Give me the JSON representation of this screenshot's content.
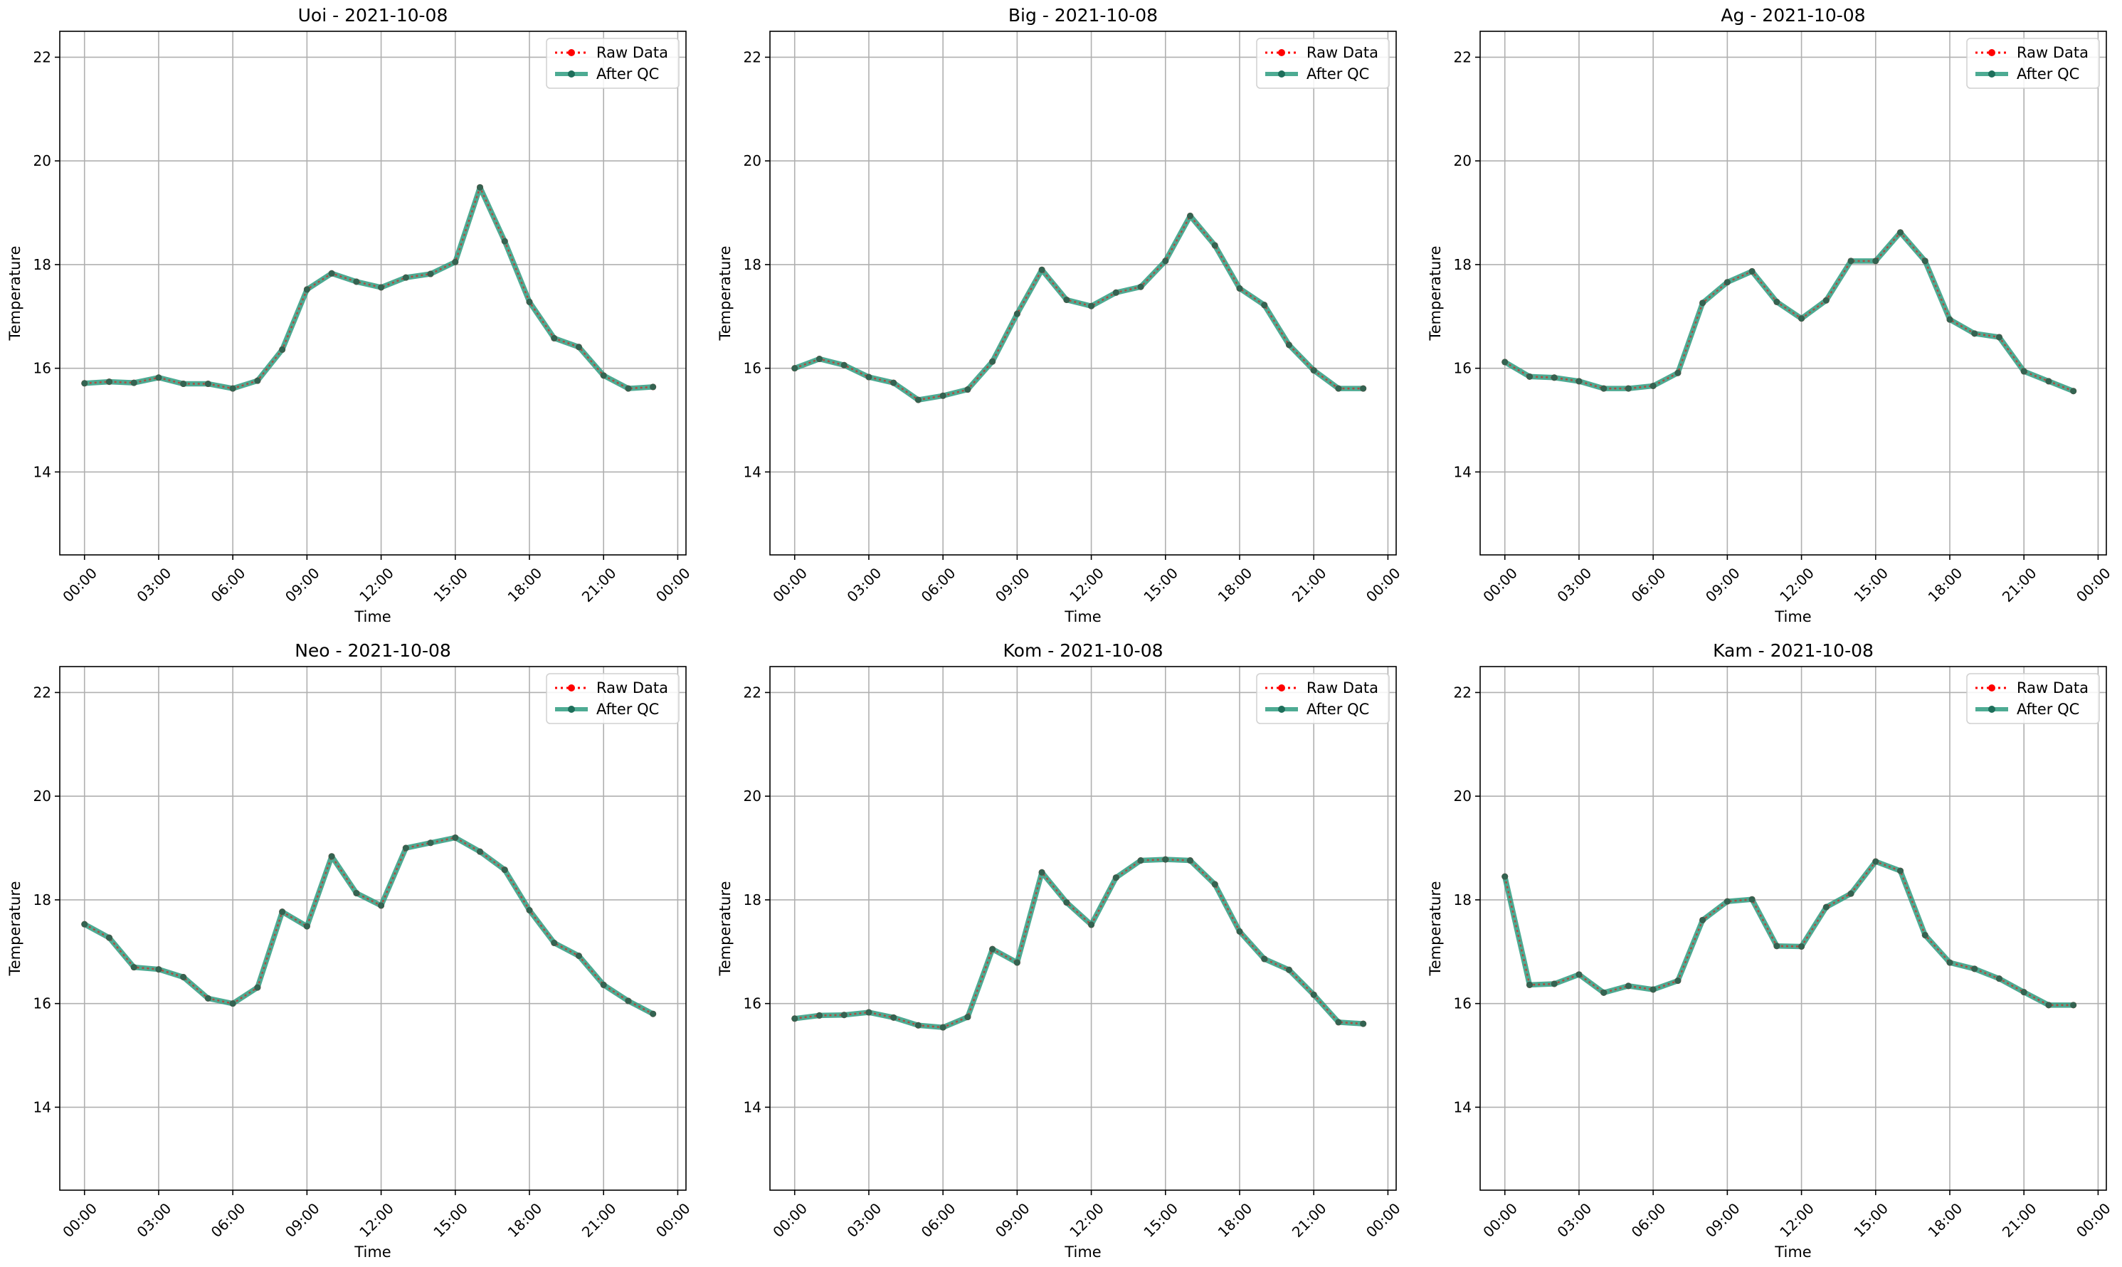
{
  "colors": {
    "raw": "#ff0000",
    "qc": "#2e9c80",
    "qc_marker": "#1e6e5a",
    "grid": "#b0b0b0",
    "axes": "#000000"
  },
  "legend": {
    "placement": "top-right",
    "raw_label": "Raw Data",
    "qc_label": "After QC"
  },
  "chart_data": [
    {
      "type": "line",
      "title": "Uoi - 2021-10-08",
      "xlabel": "Time",
      "ylabel": "Temperature",
      "grid": true,
      "ylim": [
        12.4,
        22.5
      ],
      "xlim": [
        "2021-10-07 23:00",
        "2021-10-09 00:20"
      ],
      "yticks": [
        "14",
        "16",
        "18",
        "20",
        "22"
      ],
      "xticks": [
        "00:00",
        "03:00",
        "06:00",
        "09:00",
        "12:00",
        "15:00",
        "18:00",
        "21:00",
        "00:00"
      ],
      "x": [
        "00:00",
        "01:00",
        "02:00",
        "03:00",
        "04:00",
        "05:00",
        "06:00",
        "07:00",
        "08:00",
        "09:00",
        "10:00",
        "11:00",
        "12:00",
        "13:00",
        "14:00",
        "15:00",
        "16:00",
        "17:00",
        "18:00",
        "19:00",
        "20:00",
        "21:00",
        "22:00",
        "23:00"
      ],
      "series": [
        {
          "name": "Raw Data",
          "values": [
            15.71,
            15.74,
            15.72,
            15.82,
            15.7,
            15.7,
            15.61,
            15.76,
            16.36,
            17.52,
            17.83,
            17.67,
            17.56,
            17.75,
            17.82,
            18.05,
            19.49,
            18.45,
            17.28,
            16.58,
            16.41,
            15.86,
            15.61,
            15.64
          ]
        },
        {
          "name": "After QC",
          "values": [
            15.71,
            15.74,
            15.72,
            15.82,
            15.7,
            15.7,
            15.61,
            15.76,
            16.36,
            17.52,
            17.83,
            17.67,
            17.56,
            17.75,
            17.82,
            18.05,
            19.49,
            18.45,
            17.28,
            16.58,
            16.41,
            15.86,
            15.61,
            15.64
          ]
        }
      ]
    },
    {
      "type": "line",
      "title": "Big - 2021-10-08",
      "xlabel": "Time",
      "ylabel": "Temperature",
      "grid": true,
      "ylim": [
        12.4,
        22.5
      ],
      "xlim": [
        "2021-10-07 23:00",
        "2021-10-09 00:20"
      ],
      "yticks": [
        "14",
        "16",
        "18",
        "20",
        "22"
      ],
      "xticks": [
        "00:00",
        "03:00",
        "06:00",
        "09:00",
        "12:00",
        "15:00",
        "18:00",
        "21:00",
        "00:00"
      ],
      "x": [
        "00:00",
        "01:00",
        "02:00",
        "03:00",
        "04:00",
        "05:00",
        "06:00",
        "07:00",
        "08:00",
        "09:00",
        "10:00",
        "11:00",
        "12:00",
        "13:00",
        "14:00",
        "15:00",
        "16:00",
        "17:00",
        "18:00",
        "19:00",
        "20:00",
        "21:00",
        "22:00",
        "23:00"
      ],
      "series": [
        {
          "name": "Raw Data",
          "values": [
            16.0,
            16.18,
            16.06,
            15.83,
            15.72,
            15.39,
            15.47,
            15.59,
            16.13,
            17.05,
            17.9,
            17.32,
            17.2,
            17.46,
            17.57,
            18.07,
            18.94,
            18.37,
            17.54,
            17.22,
            16.45,
            15.96,
            15.61,
            15.61
          ]
        },
        {
          "name": "After QC",
          "values": [
            16.0,
            16.18,
            16.06,
            15.83,
            15.72,
            15.39,
            15.47,
            15.59,
            16.13,
            17.05,
            17.9,
            17.32,
            17.2,
            17.46,
            17.57,
            18.07,
            18.94,
            18.37,
            17.54,
            17.22,
            16.45,
            15.96,
            15.61,
            15.61
          ]
        }
      ]
    },
    {
      "type": "line",
      "title": "Ag - 2021-10-08",
      "xlabel": "Time",
      "ylabel": "Temperature",
      "grid": true,
      "ylim": [
        12.4,
        22.5
      ],
      "xlim": [
        "2021-10-07 23:00",
        "2021-10-09 00:20"
      ],
      "yticks": [
        "14",
        "16",
        "18",
        "20",
        "22"
      ],
      "xticks": [
        "00:00",
        "03:00",
        "06:00",
        "09:00",
        "12:00",
        "15:00",
        "18:00",
        "21:00",
        "00:00"
      ],
      "x": [
        "00:00",
        "01:00",
        "02:00",
        "03:00",
        "04:00",
        "05:00",
        "06:00",
        "07:00",
        "08:00",
        "09:00",
        "10:00",
        "11:00",
        "12:00",
        "13:00",
        "14:00",
        "15:00",
        "16:00",
        "17:00",
        "18:00",
        "19:00",
        "20:00",
        "21:00",
        "22:00",
        "23:00"
      ],
      "series": [
        {
          "name": "Raw Data",
          "values": [
            16.12,
            15.84,
            15.82,
            15.75,
            15.61,
            15.61,
            15.66,
            15.91,
            17.26,
            17.66,
            17.87,
            17.28,
            16.96,
            17.31,
            18.07,
            18.07,
            18.62,
            18.07,
            16.94,
            16.67,
            16.6,
            15.94,
            15.75,
            15.56
          ]
        },
        {
          "name": "After QC",
          "values": [
            16.12,
            15.84,
            15.82,
            15.75,
            15.61,
            15.61,
            15.66,
            15.91,
            17.26,
            17.66,
            17.87,
            17.28,
            16.96,
            17.31,
            18.07,
            18.07,
            18.62,
            18.07,
            16.94,
            16.67,
            16.6,
            15.94,
            15.75,
            15.56
          ]
        }
      ]
    },
    {
      "type": "line",
      "title": "Neo - 2021-10-08",
      "xlabel": "Time",
      "ylabel": "Temperature",
      "grid": true,
      "ylim": [
        12.4,
        22.5
      ],
      "xlim": [
        "2021-10-07 23:00",
        "2021-10-09 00:20"
      ],
      "yticks": [
        "14",
        "16",
        "18",
        "20",
        "22"
      ],
      "xticks": [
        "00:00",
        "03:00",
        "06:00",
        "09:00",
        "12:00",
        "15:00",
        "18:00",
        "21:00",
        "00:00"
      ],
      "x": [
        "00:00",
        "01:00",
        "02:00",
        "03:00",
        "04:00",
        "05:00",
        "06:00",
        "07:00",
        "08:00",
        "09:00",
        "10:00",
        "11:00",
        "12:00",
        "13:00",
        "14:00",
        "15:00",
        "16:00",
        "17:00",
        "18:00",
        "19:00",
        "20:00",
        "21:00",
        "22:00",
        "23:00"
      ],
      "series": [
        {
          "name": "Raw Data",
          "values": [
            17.53,
            17.27,
            16.7,
            16.66,
            16.51,
            16.1,
            16.0,
            16.31,
            17.77,
            17.49,
            18.84,
            18.13,
            17.89,
            19.0,
            19.1,
            19.2,
            18.93,
            18.58,
            17.8,
            17.17,
            16.92,
            16.36,
            16.05,
            15.8
          ]
        },
        {
          "name": "After QC",
          "values": [
            17.53,
            17.27,
            16.7,
            16.66,
            16.51,
            16.1,
            16.0,
            16.31,
            17.77,
            17.49,
            18.84,
            18.13,
            17.89,
            19.0,
            19.1,
            19.2,
            18.93,
            18.58,
            17.8,
            17.17,
            16.92,
            16.36,
            16.05,
            15.8
          ]
        }
      ]
    },
    {
      "type": "line",
      "title": "Kom - 2021-10-08",
      "xlabel": "Time",
      "ylabel": "Temperature",
      "grid": true,
      "ylim": [
        12.4,
        22.5
      ],
      "xlim": [
        "2021-10-07 23:00",
        "2021-10-09 00:20"
      ],
      "yticks": [
        "14",
        "16",
        "18",
        "20",
        "22"
      ],
      "xticks": [
        "00:00",
        "03:00",
        "06:00",
        "09:00",
        "12:00",
        "15:00",
        "18:00",
        "21:00",
        "00:00"
      ],
      "x": [
        "00:00",
        "01:00",
        "02:00",
        "03:00",
        "04:00",
        "05:00",
        "06:00",
        "07:00",
        "08:00",
        "09:00",
        "10:00",
        "11:00",
        "12:00",
        "13:00",
        "14:00",
        "15:00",
        "16:00",
        "17:00",
        "18:00",
        "19:00",
        "20:00",
        "21:00",
        "22:00",
        "23:00"
      ],
      "series": [
        {
          "name": "Raw Data",
          "values": [
            15.71,
            15.77,
            15.78,
            15.83,
            15.73,
            15.58,
            15.54,
            15.74,
            17.05,
            16.79,
            18.53,
            17.95,
            17.52,
            18.43,
            18.76,
            18.78,
            18.76,
            18.3,
            17.39,
            16.86,
            16.65,
            16.17,
            15.64,
            15.61
          ]
        },
        {
          "name": "After QC",
          "values": [
            15.71,
            15.77,
            15.78,
            15.83,
            15.73,
            15.58,
            15.54,
            15.74,
            17.05,
            16.79,
            18.53,
            17.95,
            17.52,
            18.43,
            18.76,
            18.78,
            18.76,
            18.3,
            17.39,
            16.86,
            16.65,
            16.17,
            15.64,
            15.61
          ]
        }
      ]
    },
    {
      "type": "line",
      "title": "Kam - 2021-10-08",
      "xlabel": "Time",
      "ylabel": "Temperature",
      "grid": true,
      "ylim": [
        12.4,
        22.5
      ],
      "xlim": [
        "2021-10-07 23:00",
        "2021-10-09 00:20"
      ],
      "yticks": [
        "14",
        "16",
        "18",
        "20",
        "22"
      ],
      "xticks": [
        "00:00",
        "03:00",
        "06:00",
        "09:00",
        "12:00",
        "15:00",
        "18:00",
        "21:00",
        "00:00"
      ],
      "x": [
        "00:00",
        "01:00",
        "02:00",
        "03:00",
        "04:00",
        "05:00",
        "06:00",
        "07:00",
        "08:00",
        "09:00",
        "10:00",
        "11:00",
        "12:00",
        "13:00",
        "14:00",
        "15:00",
        "16:00",
        "17:00",
        "18:00",
        "19:00",
        "20:00",
        "21:00",
        "22:00",
        "23:00"
      ],
      "series": [
        {
          "name": "Raw Data",
          "values": [
            18.45,
            16.36,
            16.38,
            16.56,
            16.21,
            16.34,
            16.27,
            16.44,
            17.61,
            17.97,
            18.01,
            17.11,
            17.1,
            17.86,
            18.12,
            18.74,
            18.56,
            17.32,
            16.79,
            16.67,
            16.48,
            16.22,
            15.97,
            15.97
          ]
        },
        {
          "name": "After QC",
          "values": [
            18.45,
            16.36,
            16.38,
            16.56,
            16.21,
            16.34,
            16.27,
            16.44,
            17.61,
            17.97,
            18.01,
            17.11,
            17.1,
            17.86,
            18.12,
            18.74,
            18.56,
            17.32,
            16.79,
            16.67,
            16.48,
            16.22,
            15.97,
            15.97
          ]
        }
      ]
    }
  ]
}
